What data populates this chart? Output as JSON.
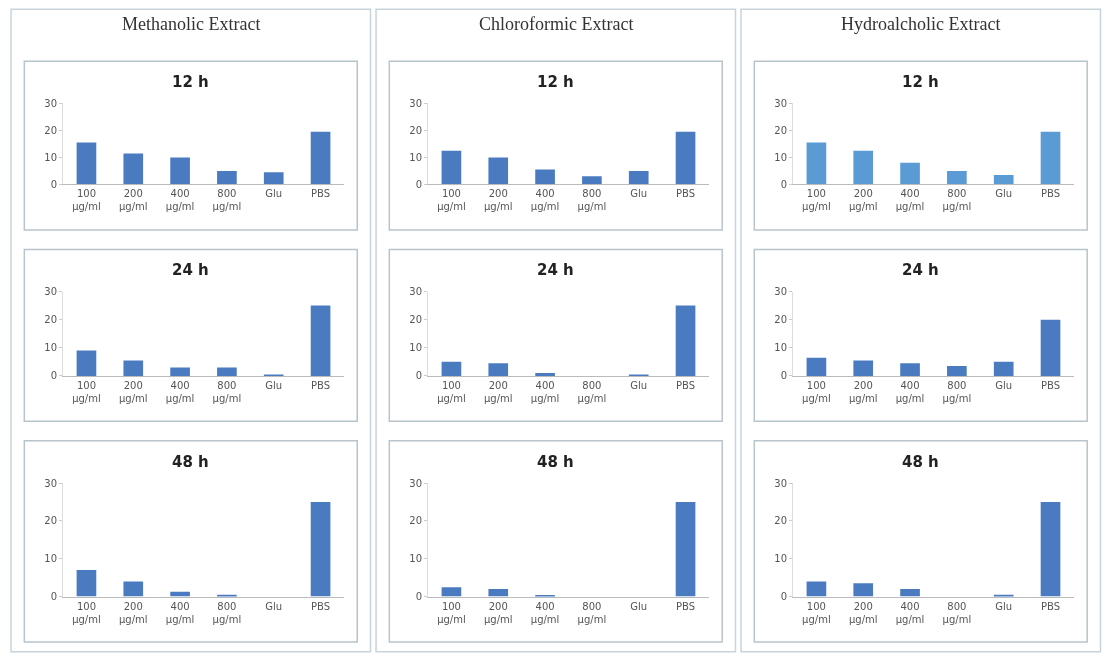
{
  "chart_data": [
    {
      "type": "bar",
      "title": "Methanolic Extract",
      "subtitle": "12 h",
      "categories": [
        "100\nµg/ml",
        "200\nµg/ml",
        "400\nµg/ml",
        "800\nµg/ml",
        "Glu",
        "PBS"
      ],
      "values": [
        15.5,
        11.5,
        10,
        5,
        4.5,
        19.5
      ],
      "color": "#4a7bc0",
      "ylim": [
        0,
        30
      ],
      "yticks": [
        0,
        10,
        20,
        30
      ]
    },
    {
      "type": "bar",
      "title": "24 h",
      "categories": [
        "100\nµg/ml",
        "200\nµg/ml",
        "400\nµg/ml",
        "800\nµg/ml",
        "Glu",
        "PBS"
      ],
      "values": [
        9,
        5.5,
        3,
        3,
        0.5,
        25
      ],
      "color": "#4a7bc0",
      "ylim": [
        0,
        30
      ],
      "yticks": [
        0,
        10,
        20,
        30
      ]
    },
    {
      "type": "bar",
      "title": "48 h",
      "categories": [
        "100\nµg/ml",
        "200\nµg/ml",
        "400\nµg/ml",
        "800\nµg/ml",
        "Glu",
        "PBS"
      ],
      "values": [
        7,
        4,
        1.3,
        0.5,
        0,
        25
      ],
      "color": "#4a7bc0",
      "ylim": [
        0,
        30
      ],
      "yticks": [
        0,
        10,
        20,
        30
      ]
    },
    {
      "type": "bar",
      "title": "Chloroformic Extract",
      "subtitle": "12 h",
      "categories": [
        "100\nµg/ml",
        "200\nµg/ml",
        "400\nµg/ml",
        "800\nµg/ml",
        "Glu",
        "PBS"
      ],
      "values": [
        12.5,
        10,
        5.5,
        3,
        5,
        19.5
      ],
      "color": "#4a7bc0",
      "ylim": [
        0,
        30
      ],
      "yticks": [
        0,
        10,
        20,
        30
      ]
    },
    {
      "type": "bar",
      "title": "24 h",
      "categories": [
        "100\nµg/ml",
        "200\nµg/ml",
        "400\nµg/ml",
        "800\nµg/ml",
        "Glu",
        "PBS"
      ],
      "values": [
        5,
        4.5,
        1,
        0,
        0.3,
        25
      ],
      "color": "#4a7bc0",
      "ylim": [
        0,
        30
      ],
      "yticks": [
        0,
        10,
        20,
        30
      ]
    },
    {
      "type": "bar",
      "title": "48 h",
      "categories": [
        "100\nµg/ml",
        "200\nµg/ml",
        "400\nµg/ml",
        "800\nµg/ml",
        "Glu",
        "PBS"
      ],
      "values": [
        2.5,
        2,
        0.3,
        0,
        0,
        25
      ],
      "color": "#4a7bc0",
      "ylim": [
        0,
        30
      ],
      "yticks": [
        0,
        10,
        20,
        30
      ]
    },
    {
      "type": "bar",
      "title": "Hydroalcholic Extract",
      "subtitle": "12 h",
      "categories": [
        "100\nµg/ml",
        "200\nµg/ml",
        "400\nµg/ml",
        "800\nµg/ml",
        "Glu",
        "PBS"
      ],
      "values": [
        15.5,
        12.5,
        8,
        5,
        3.5,
        19.5
      ],
      "color": "#5b9bd5",
      "ylim": [
        0,
        30
      ],
      "yticks": [
        0,
        10,
        20,
        30
      ]
    },
    {
      "type": "bar",
      "title": "24 h",
      "categories": [
        "100\nµg/ml",
        "200\nµg/ml",
        "400\nµg/ml",
        "800\nµg/ml",
        "Glu",
        "PBS"
      ],
      "values": [
        6.5,
        5.5,
        4.5,
        3.5,
        5,
        20
      ],
      "color": "#4a7bc0",
      "ylim": [
        0,
        30
      ],
      "yticks": [
        0,
        10,
        20,
        30
      ]
    },
    {
      "type": "bar",
      "title": "48 h",
      "categories": [
        "100\nµg/ml",
        "200\nµg/ml",
        "400\nµg/ml",
        "800\nµg/ml",
        "Glu",
        "PBS"
      ],
      "values": [
        4,
        3.5,
        2,
        0,
        0.5,
        25
      ],
      "color": "#4a7bc0",
      "ylim": [
        0,
        30
      ],
      "yticks": [
        0,
        10,
        20,
        30
      ]
    }
  ]
}
